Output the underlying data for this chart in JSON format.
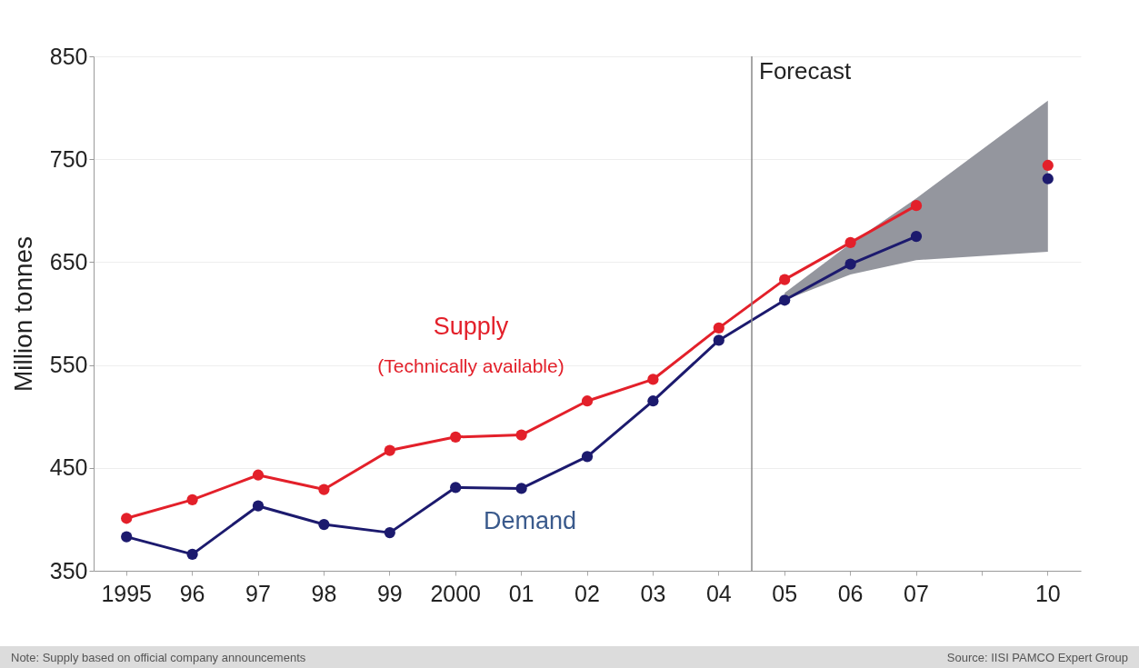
{
  "chart_data": {
    "type": "line",
    "ylabel": "Million tonnes",
    "categories": [
      "1995",
      "96",
      "97",
      "98",
      "99",
      "2000",
      "01",
      "02",
      "03",
      "04",
      "05",
      "06",
      "07",
      null,
      "10"
    ],
    "series": [
      {
        "name": "Supply",
        "color": "#e3202a",
        "values": [
          401,
          419,
          443,
          429,
          467,
          480,
          482,
          515,
          536,
          586,
          633,
          669,
          705,
          null,
          744
        ]
      },
      {
        "name": "Demand",
        "color": "#1c1a6e",
        "values": [
          383,
          366,
          413,
          395,
          387,
          431,
          430,
          461,
          515,
          574,
          613,
          648,
          675,
          null,
          731
        ],
        "lower": [
          null,
          null,
          null,
          null,
          null,
          null,
          null,
          null,
          null,
          null,
          613,
          638,
          652,
          null,
          660
        ],
        "upper": [
          null,
          null,
          null,
          null,
          null,
          null,
          null,
          null,
          null,
          null,
          620,
          668,
          712,
          null,
          807
        ]
      }
    ],
    "ylim": [
      350,
      850
    ],
    "yticks": [
      350,
      450,
      550,
      650,
      750,
      850
    ],
    "grid": "y",
    "marker": "circle",
    "line_style": "solid",
    "ref_lines": [
      {
        "axis": "x",
        "value": "05",
        "label": "Forecast",
        "color": "#888888"
      }
    ],
    "annotations": [
      "(Technically available)",
      "Note: Supply based on official company announcements",
      "Source: IISI PAMCO Expert Group"
    ]
  }
}
